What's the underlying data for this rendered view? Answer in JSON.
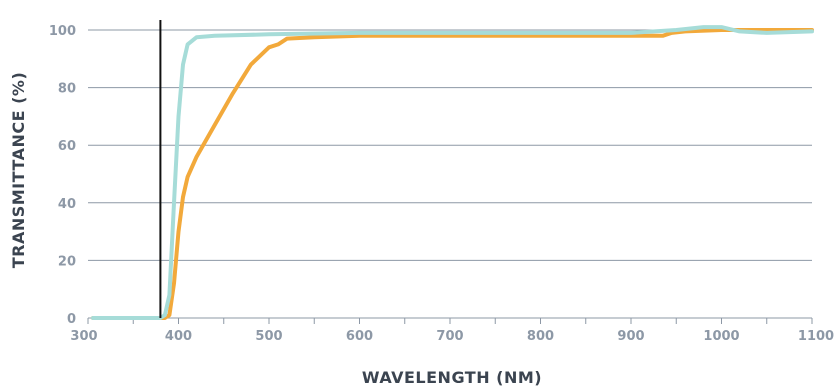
{
  "chart_data": {
    "type": "line",
    "xlabel": "WAVELENGTH (NM)",
    "ylabel": "TRANSMITTANCE (%)",
    "xlim": [
      300,
      1100
    ],
    "ylim": [
      0,
      100
    ],
    "x_ticks": [
      300,
      400,
      500,
      600,
      700,
      800,
      900,
      1000,
      1100
    ],
    "x_tick_labels": [
      "300",
      "400",
      "500",
      "600",
      "700",
      "800",
      "900",
      "1000",
      "1100"
    ],
    "y_ticks": [
      0,
      20,
      40,
      60,
      80,
      100
    ],
    "y_tick_labels": [
      "0",
      "20",
      "40",
      "60",
      "80",
      "100"
    ],
    "grid": "horizontal",
    "cutoff_line_x": 380,
    "series": [
      {
        "color": "#f2a93b",
        "points": [
          [
            290,
            0
          ],
          [
            385,
            0
          ],
          [
            390,
            1
          ],
          [
            395,
            12
          ],
          [
            400,
            30
          ],
          [
            405,
            42
          ],
          [
            410,
            49
          ],
          [
            420,
            56
          ],
          [
            440,
            67
          ],
          [
            460,
            78
          ],
          [
            480,
            88
          ],
          [
            500,
            94
          ],
          [
            510,
            95
          ],
          [
            520,
            97
          ],
          [
            550,
            97.5
          ],
          [
            600,
            98
          ],
          [
            700,
            98
          ],
          [
            800,
            98
          ],
          [
            900,
            98
          ],
          [
            935,
            98
          ],
          [
            945,
            99
          ],
          [
            960,
            99.5
          ],
          [
            1000,
            100
          ],
          [
            1050,
            100
          ],
          [
            1100,
            100
          ]
        ]
      },
      {
        "color": "#a6dcd8",
        "points": [
          [
            290,
            0
          ],
          [
            380,
            0
          ],
          [
            385,
            1
          ],
          [
            390,
            8
          ],
          [
            395,
            40
          ],
          [
            400,
            70
          ],
          [
            405,
            88
          ],
          [
            410,
            95
          ],
          [
            420,
            97.5
          ],
          [
            440,
            98
          ],
          [
            500,
            98.5
          ],
          [
            600,
            99
          ],
          [
            700,
            99
          ],
          [
            800,
            99
          ],
          [
            900,
            99
          ],
          [
            950,
            100
          ],
          [
            980,
            101
          ],
          [
            1000,
            101
          ],
          [
            1020,
            99.5
          ],
          [
            1050,
            99
          ],
          [
            1100,
            99.5
          ]
        ]
      }
    ]
  }
}
